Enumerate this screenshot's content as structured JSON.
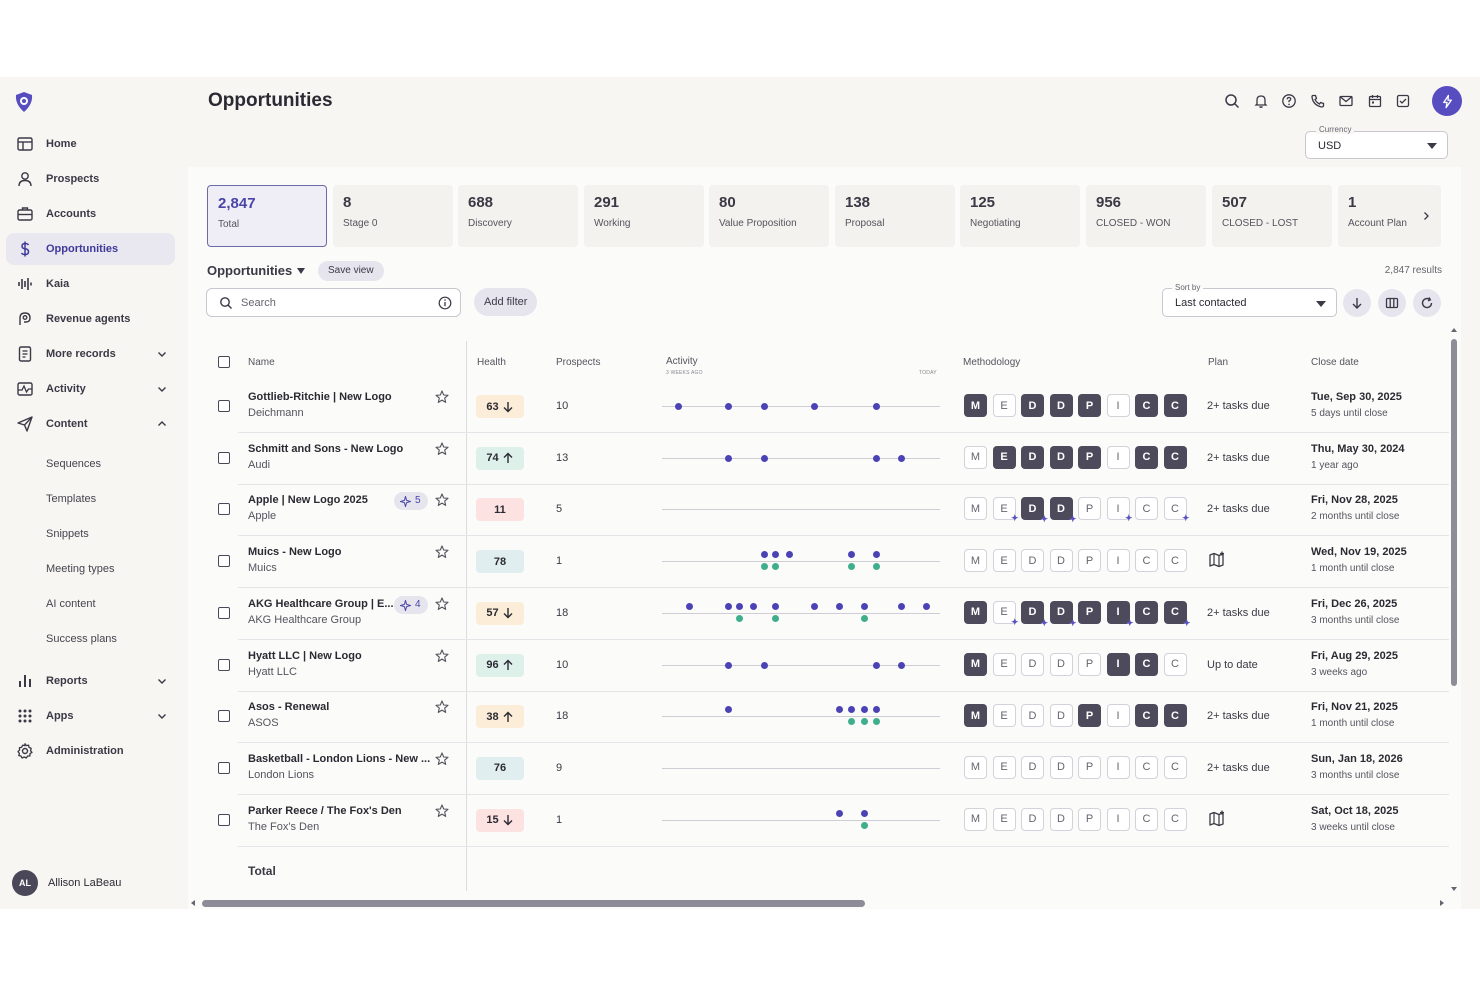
{
  "header": {
    "title": "Opportunities",
    "icons": [
      "search-icon",
      "bell-icon",
      "help-icon",
      "phone-icon",
      "mail-icon",
      "calendar-icon",
      "tasks-icon"
    ],
    "currency": {
      "label": "Currency",
      "value": "USD"
    }
  },
  "sidebar": {
    "items": [
      {
        "label": "Home",
        "icon": "home-icon"
      },
      {
        "label": "Prospects",
        "icon": "person-icon"
      },
      {
        "label": "Accounts",
        "icon": "briefcase-icon"
      },
      {
        "label": "Opportunities",
        "icon": "dollar-icon",
        "active": true
      },
      {
        "label": "Kaia",
        "icon": "waveform-icon"
      },
      {
        "label": "Revenue agents",
        "icon": "agent-icon"
      },
      {
        "label": "More records",
        "icon": "records-icon"
      },
      {
        "label": "Activity",
        "icon": "activity-icon"
      },
      {
        "label": "Content",
        "icon": "send-icon"
      }
    ],
    "content_sub": [
      "Sequences",
      "Templates",
      "Snippets",
      "Meeting types",
      "AI content",
      "Success plans"
    ],
    "bottom_items": [
      {
        "label": "Reports",
        "icon": "bar-chart-icon"
      },
      {
        "label": "Apps",
        "icon": "grid-icon"
      },
      {
        "label": "Administration",
        "icon": "gear-icon"
      }
    ],
    "user": {
      "initials": "AL",
      "name": "Allison LaBeau"
    }
  },
  "stages": [
    {
      "count": "2,847",
      "label": "Total"
    },
    {
      "count": "8",
      "label": "Stage 0"
    },
    {
      "count": "688",
      "label": "Discovery"
    },
    {
      "count": "291",
      "label": "Working"
    },
    {
      "count": "80",
      "label": "Value Proposition"
    },
    {
      "count": "138",
      "label": "Proposal"
    },
    {
      "count": "125",
      "label": "Negotiating"
    },
    {
      "count": "956",
      "label": "CLOSED - WON"
    },
    {
      "count": "507",
      "label": "CLOSED - LOST"
    },
    {
      "count": "1",
      "label": "Account Plan"
    }
  ],
  "view": {
    "title": "Opportunities",
    "save_label": "Save view",
    "results": "2,847 results",
    "search_placeholder": "Search",
    "add_filter": "Add filter",
    "sort_label": "Sort by",
    "sort_value": "Last contacted"
  },
  "table": {
    "columns": {
      "name": "Name",
      "health": "Health",
      "prospects": "Prospects",
      "activity": "Activity",
      "activity_start": "3 WEEKS AGO",
      "activity_end": "TODAY",
      "methodology": "Methodology",
      "plan": "Plan",
      "close_date": "Close date"
    },
    "methodology_letters": [
      "M",
      "E",
      "D",
      "D",
      "P",
      "I",
      "C",
      "C"
    ],
    "rows": [
      {
        "name": "Gottlieb-Ritchie | New Logo",
        "account": "Deichmann",
        "health": "63",
        "trend": "down",
        "tone": "yellow",
        "prospects": "10",
        "activity_purple": [
          0.06,
          0.24,
          0.37,
          0.55,
          0.77
        ],
        "activity_green": [],
        "meth": [
          1,
          0,
          1,
          1,
          1,
          0,
          1,
          1
        ],
        "spark": [
          0,
          0,
          0,
          0,
          0,
          0,
          0,
          0
        ],
        "plan": "2+ tasks due",
        "close": "Tue, Sep 30, 2025",
        "close_sub": "5 days until close"
      },
      {
        "name": "Schmitt and Sons - New Logo",
        "account": "Audi",
        "health": "74",
        "trend": "up",
        "tone": "green",
        "prospects": "13",
        "activity_purple": [
          0.24,
          0.37,
          0.77,
          0.86
        ],
        "activity_green": [],
        "meth": [
          0,
          1,
          1,
          1,
          1,
          0,
          1,
          1
        ],
        "spark": [
          0,
          0,
          0,
          0,
          0,
          0,
          0,
          0
        ],
        "plan": "2+ tasks due",
        "close": "Thu, May 30, 2024",
        "close_sub": "1 year ago"
      },
      {
        "name": "Apple | New Logo 2025",
        "account": "Apple",
        "health": "11",
        "trend": "",
        "tone": "red",
        "prospects": "5",
        "ai": "5",
        "activity_purple": [],
        "activity_green": [],
        "meth": [
          0,
          0,
          1,
          1,
          0,
          0,
          0,
          0
        ],
        "spark": [
          0,
          1,
          1,
          1,
          0,
          1,
          0,
          1
        ],
        "plan": "2+ tasks due",
        "close": "Fri, Nov 28, 2025",
        "close_sub": "2 months until close"
      },
      {
        "name": "Muics - New Logo",
        "account": "Muics",
        "health": "78",
        "trend": "",
        "tone": "blue",
        "prospects": "1",
        "activity_purple": [
          0.37,
          0.41,
          0.46,
          0.68,
          0.77
        ],
        "activity_green": [
          0.37,
          0.41,
          0.68,
          0.77
        ],
        "meth": [
          0,
          0,
          0,
          0,
          0,
          0,
          0,
          0
        ],
        "spark": [
          0,
          0,
          0,
          0,
          0,
          0,
          0,
          0
        ],
        "plan": "",
        "plan_icon": "map-icon",
        "close": "Wed, Nov 19, 2025",
        "close_sub": "1 month until close"
      },
      {
        "name": "AKG Healthcare Group | E...",
        "account": "AKG Healthcare Group",
        "health": "57",
        "trend": "down",
        "tone": "yellow",
        "prospects": "18",
        "ai": "4",
        "activity_purple": [
          0.1,
          0.24,
          0.28,
          0.33,
          0.41,
          0.55,
          0.64,
          0.73,
          0.86,
          0.95
        ],
        "activity_green": [
          0.28,
          0.41,
          0.73
        ],
        "meth": [
          1,
          0,
          1,
          1,
          1,
          1,
          1,
          1
        ],
        "spark": [
          0,
          1,
          1,
          1,
          0,
          1,
          0,
          1
        ],
        "plan": "2+ tasks due",
        "close": "Fri, Dec 26, 2025",
        "close_sub": "3 months until close"
      },
      {
        "name": "Hyatt LLC | New Logo",
        "account": "Hyatt LLC",
        "health": "96",
        "trend": "up",
        "tone": "green",
        "prospects": "10",
        "activity_purple": [
          0.24,
          0.37,
          0.77,
          0.86
        ],
        "activity_green": [],
        "meth": [
          1,
          0,
          0,
          0,
          0,
          1,
          1,
          0
        ],
        "spark": [
          0,
          0,
          0,
          0,
          0,
          0,
          0,
          0
        ],
        "plan": "Up to date",
        "close": "Fri, Aug 29, 2025",
        "close_sub": "3 weeks ago"
      },
      {
        "name": "Asos - Renewal",
        "account": "ASOS",
        "health": "38",
        "trend": "up",
        "tone": "yellow",
        "prospects": "18",
        "activity_purple": [
          0.24,
          0.64,
          0.68,
          0.73,
          0.77
        ],
        "activity_green": [
          0.68,
          0.73,
          0.77
        ],
        "meth": [
          1,
          0,
          0,
          0,
          1,
          0,
          1,
          1
        ],
        "spark": [
          0,
          0,
          0,
          0,
          0,
          0,
          0,
          0
        ],
        "plan": "2+ tasks due",
        "close": "Fri, Nov 21, 2025",
        "close_sub": "1 month until close"
      },
      {
        "name": "Basketball - London Lions - New ...",
        "account": "London Lions",
        "health": "76",
        "trend": "",
        "tone": "blue",
        "prospects": "9",
        "activity_purple": [],
        "activity_green": [],
        "meth": [
          0,
          0,
          0,
          0,
          0,
          0,
          0,
          0
        ],
        "spark": [
          0,
          0,
          0,
          0,
          0,
          0,
          0,
          0
        ],
        "plan": "2+ tasks due",
        "close": "Sun, Jan 18, 2026",
        "close_sub": "3 months until close"
      },
      {
        "name": "Parker Reece / The Fox's Den",
        "account": "The Fox's Den",
        "health": "15",
        "trend": "down",
        "tone": "red",
        "prospects": "1",
        "activity_purple": [
          0.64,
          0.73
        ],
        "activity_green": [
          0.73
        ],
        "meth": [
          0,
          0,
          0,
          0,
          0,
          0,
          0,
          0
        ],
        "spark": [
          0,
          0,
          0,
          0,
          0,
          0,
          0,
          0
        ],
        "plan": "",
        "plan_icon": "map-icon",
        "close": "Sat, Oct 18, 2025",
        "close_sub": "3 weeks until close"
      }
    ],
    "total_label": "Total"
  },
  "colors": {
    "accent": "#574cc0",
    "dot_purple": "#4b43b5",
    "dot_green": "#3fae8c"
  }
}
